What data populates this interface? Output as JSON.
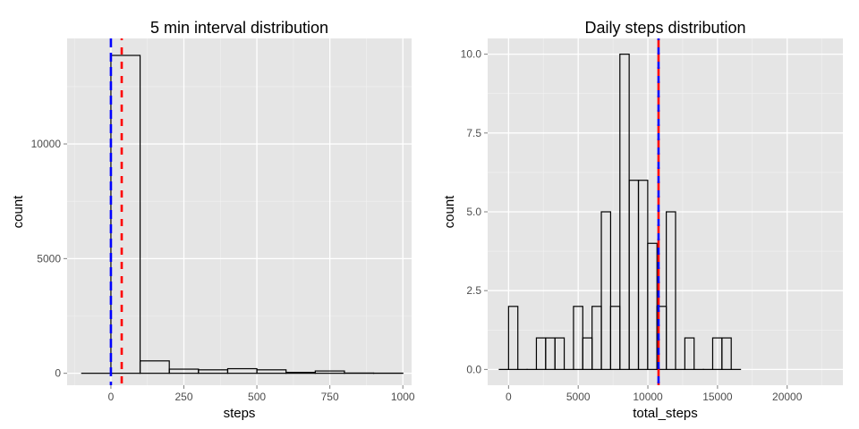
{
  "chart_data": [
    {
      "type": "bar",
      "title": "5 min interval distribution",
      "xlabel": "steps",
      "ylabel": "count",
      "xlim": [
        -150,
        1030
      ],
      "ylim": [
        -520,
        14600
      ],
      "xticks": [
        0,
        250,
        500,
        750,
        1000
      ],
      "yticks": [
        0,
        5000,
        10000
      ],
      "x_tick_labels": [
        "0",
        "250",
        "500",
        "750",
        "1000"
      ],
      "y_tick_labels": [
        "0",
        "5000",
        "10000"
      ],
      "bins": [
        {
          "x0": -100,
          "x1": 0,
          "count": 0
        },
        {
          "x0": 0,
          "x1": 100,
          "count": 13860
        },
        {
          "x0": 100,
          "x1": 200,
          "count": 540
        },
        {
          "x0": 200,
          "x1": 300,
          "count": 180
        },
        {
          "x0": 300,
          "x1": 400,
          "count": 150
        },
        {
          "x0": 400,
          "x1": 500,
          "count": 200
        },
        {
          "x0": 500,
          "x1": 600,
          "count": 150
        },
        {
          "x0": 600,
          "x1": 700,
          "count": 40
        },
        {
          "x0": 700,
          "x1": 800,
          "count": 100
        },
        {
          "x0": 800,
          "x1": 900,
          "count": 10
        },
        {
          "x0": 900,
          "x1": 1000,
          "count": 5
        }
      ],
      "vlines": [
        {
          "x": 0,
          "color": "#0000ff"
        },
        {
          "x": 37,
          "color": "#ff0000"
        }
      ],
      "grid": true
    },
    {
      "type": "bar",
      "title": "Daily steps distribution",
      "xlabel": "total_steps",
      "ylabel": "count",
      "xlim": [
        -1500,
        24000
      ],
      "ylim": [
        -0.5,
        10.5
      ],
      "xticks": [
        0,
        5000,
        10000,
        15000,
        20000
      ],
      "yticks": [
        0,
        2.5,
        5,
        7.5,
        10
      ],
      "x_tick_labels": [
        "0",
        "5000",
        "10000",
        "15000",
        "20000"
      ],
      "y_tick_labels": [
        "0.0",
        "2.5",
        "5.0",
        "7.5",
        "10.0"
      ],
      "bins": [
        {
          "x0": -666,
          "x1": 0,
          "count": 0
        },
        {
          "x0": 0,
          "x1": 666,
          "count": 2
        },
        {
          "x0": 666,
          "x1": 1332,
          "count": 0
        },
        {
          "x0": 1332,
          "x1": 1998,
          "count": 0
        },
        {
          "x0": 1998,
          "x1": 2664,
          "count": 1
        },
        {
          "x0": 2664,
          "x1": 3330,
          "count": 1
        },
        {
          "x0": 3330,
          "x1": 3996,
          "count": 1
        },
        {
          "x0": 3996,
          "x1": 4662,
          "count": 0
        },
        {
          "x0": 4662,
          "x1": 5328,
          "count": 2
        },
        {
          "x0": 5328,
          "x1": 5994,
          "count": 1
        },
        {
          "x0": 5994,
          "x1": 6660,
          "count": 2
        },
        {
          "x0": 6660,
          "x1": 7326,
          "count": 5
        },
        {
          "x0": 7326,
          "x1": 7992,
          "count": 2
        },
        {
          "x0": 7992,
          "x1": 8658,
          "count": 10
        },
        {
          "x0": 8658,
          "x1": 9324,
          "count": 6
        },
        {
          "x0": 9324,
          "x1": 9990,
          "count": 6
        },
        {
          "x0": 9990,
          "x1": 10656,
          "count": 4
        },
        {
          "x0": 10656,
          "x1": 11322,
          "count": 2
        },
        {
          "x0": 11322,
          "x1": 11988,
          "count": 5
        },
        {
          "x0": 11988,
          "x1": 12654,
          "count": 0
        },
        {
          "x0": 12654,
          "x1": 13320,
          "count": 1
        },
        {
          "x0": 13320,
          "x1": 13986,
          "count": 0
        },
        {
          "x0": 13986,
          "x1": 14652,
          "count": 0
        },
        {
          "x0": 14652,
          "x1": 15318,
          "count": 1
        },
        {
          "x0": 15318,
          "x1": 15984,
          "count": 1
        },
        {
          "x0": 15984,
          "x1": 16650,
          "count": 0
        }
      ],
      "vlines": [
        {
          "x": 10766,
          "color": "#ff0000"
        },
        {
          "x": 10766,
          "color": "#0000ff"
        }
      ],
      "grid": true
    }
  ]
}
